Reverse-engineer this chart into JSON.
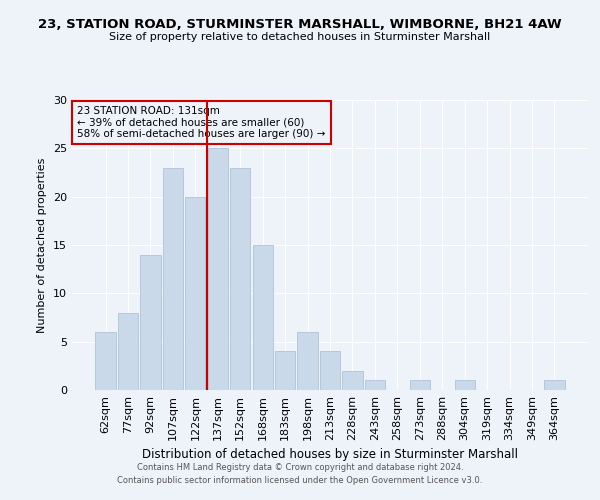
{
  "title": "23, STATION ROAD, STURMINSTER MARSHALL, WIMBORNE, BH21 4AW",
  "subtitle": "Size of property relative to detached houses in Sturminster Marshall",
  "xlabel": "Distribution of detached houses by size in Sturminster Marshall",
  "ylabel": "Number of detached properties",
  "categories": [
    "62sqm",
    "77sqm",
    "92sqm",
    "107sqm",
    "122sqm",
    "137sqm",
    "152sqm",
    "168sqm",
    "183sqm",
    "198sqm",
    "213sqm",
    "228sqm",
    "243sqm",
    "258sqm",
    "273sqm",
    "288sqm",
    "304sqm",
    "319sqm",
    "334sqm",
    "349sqm",
    "364sqm"
  ],
  "values": [
    6,
    8,
    14,
    23,
    20,
    25,
    23,
    15,
    4,
    6,
    4,
    2,
    1,
    0,
    1,
    0,
    1,
    0,
    0,
    0,
    1
  ],
  "bar_color": "#c9d9ea",
  "bar_edge_color": "#adc4d8",
  "vline_x": 4.5,
  "vline_color": "#cc0000",
  "annotation_text": "23 STATION ROAD: 131sqm\n← 39% of detached houses are smaller (60)\n58% of semi-detached houses are larger (90) →",
  "annotation_box_color": "#cc0000",
  "ylim": [
    0,
    30
  ],
  "yticks": [
    0,
    5,
    10,
    15,
    20,
    25,
    30
  ],
  "background_color": "#eef2f9",
  "grid_color": "#ffffff",
  "footer_line1": "Contains HM Land Registry data © Crown copyright and database right 2024.",
  "footer_line2": "Contains public sector information licensed under the Open Government Licence v3.0."
}
